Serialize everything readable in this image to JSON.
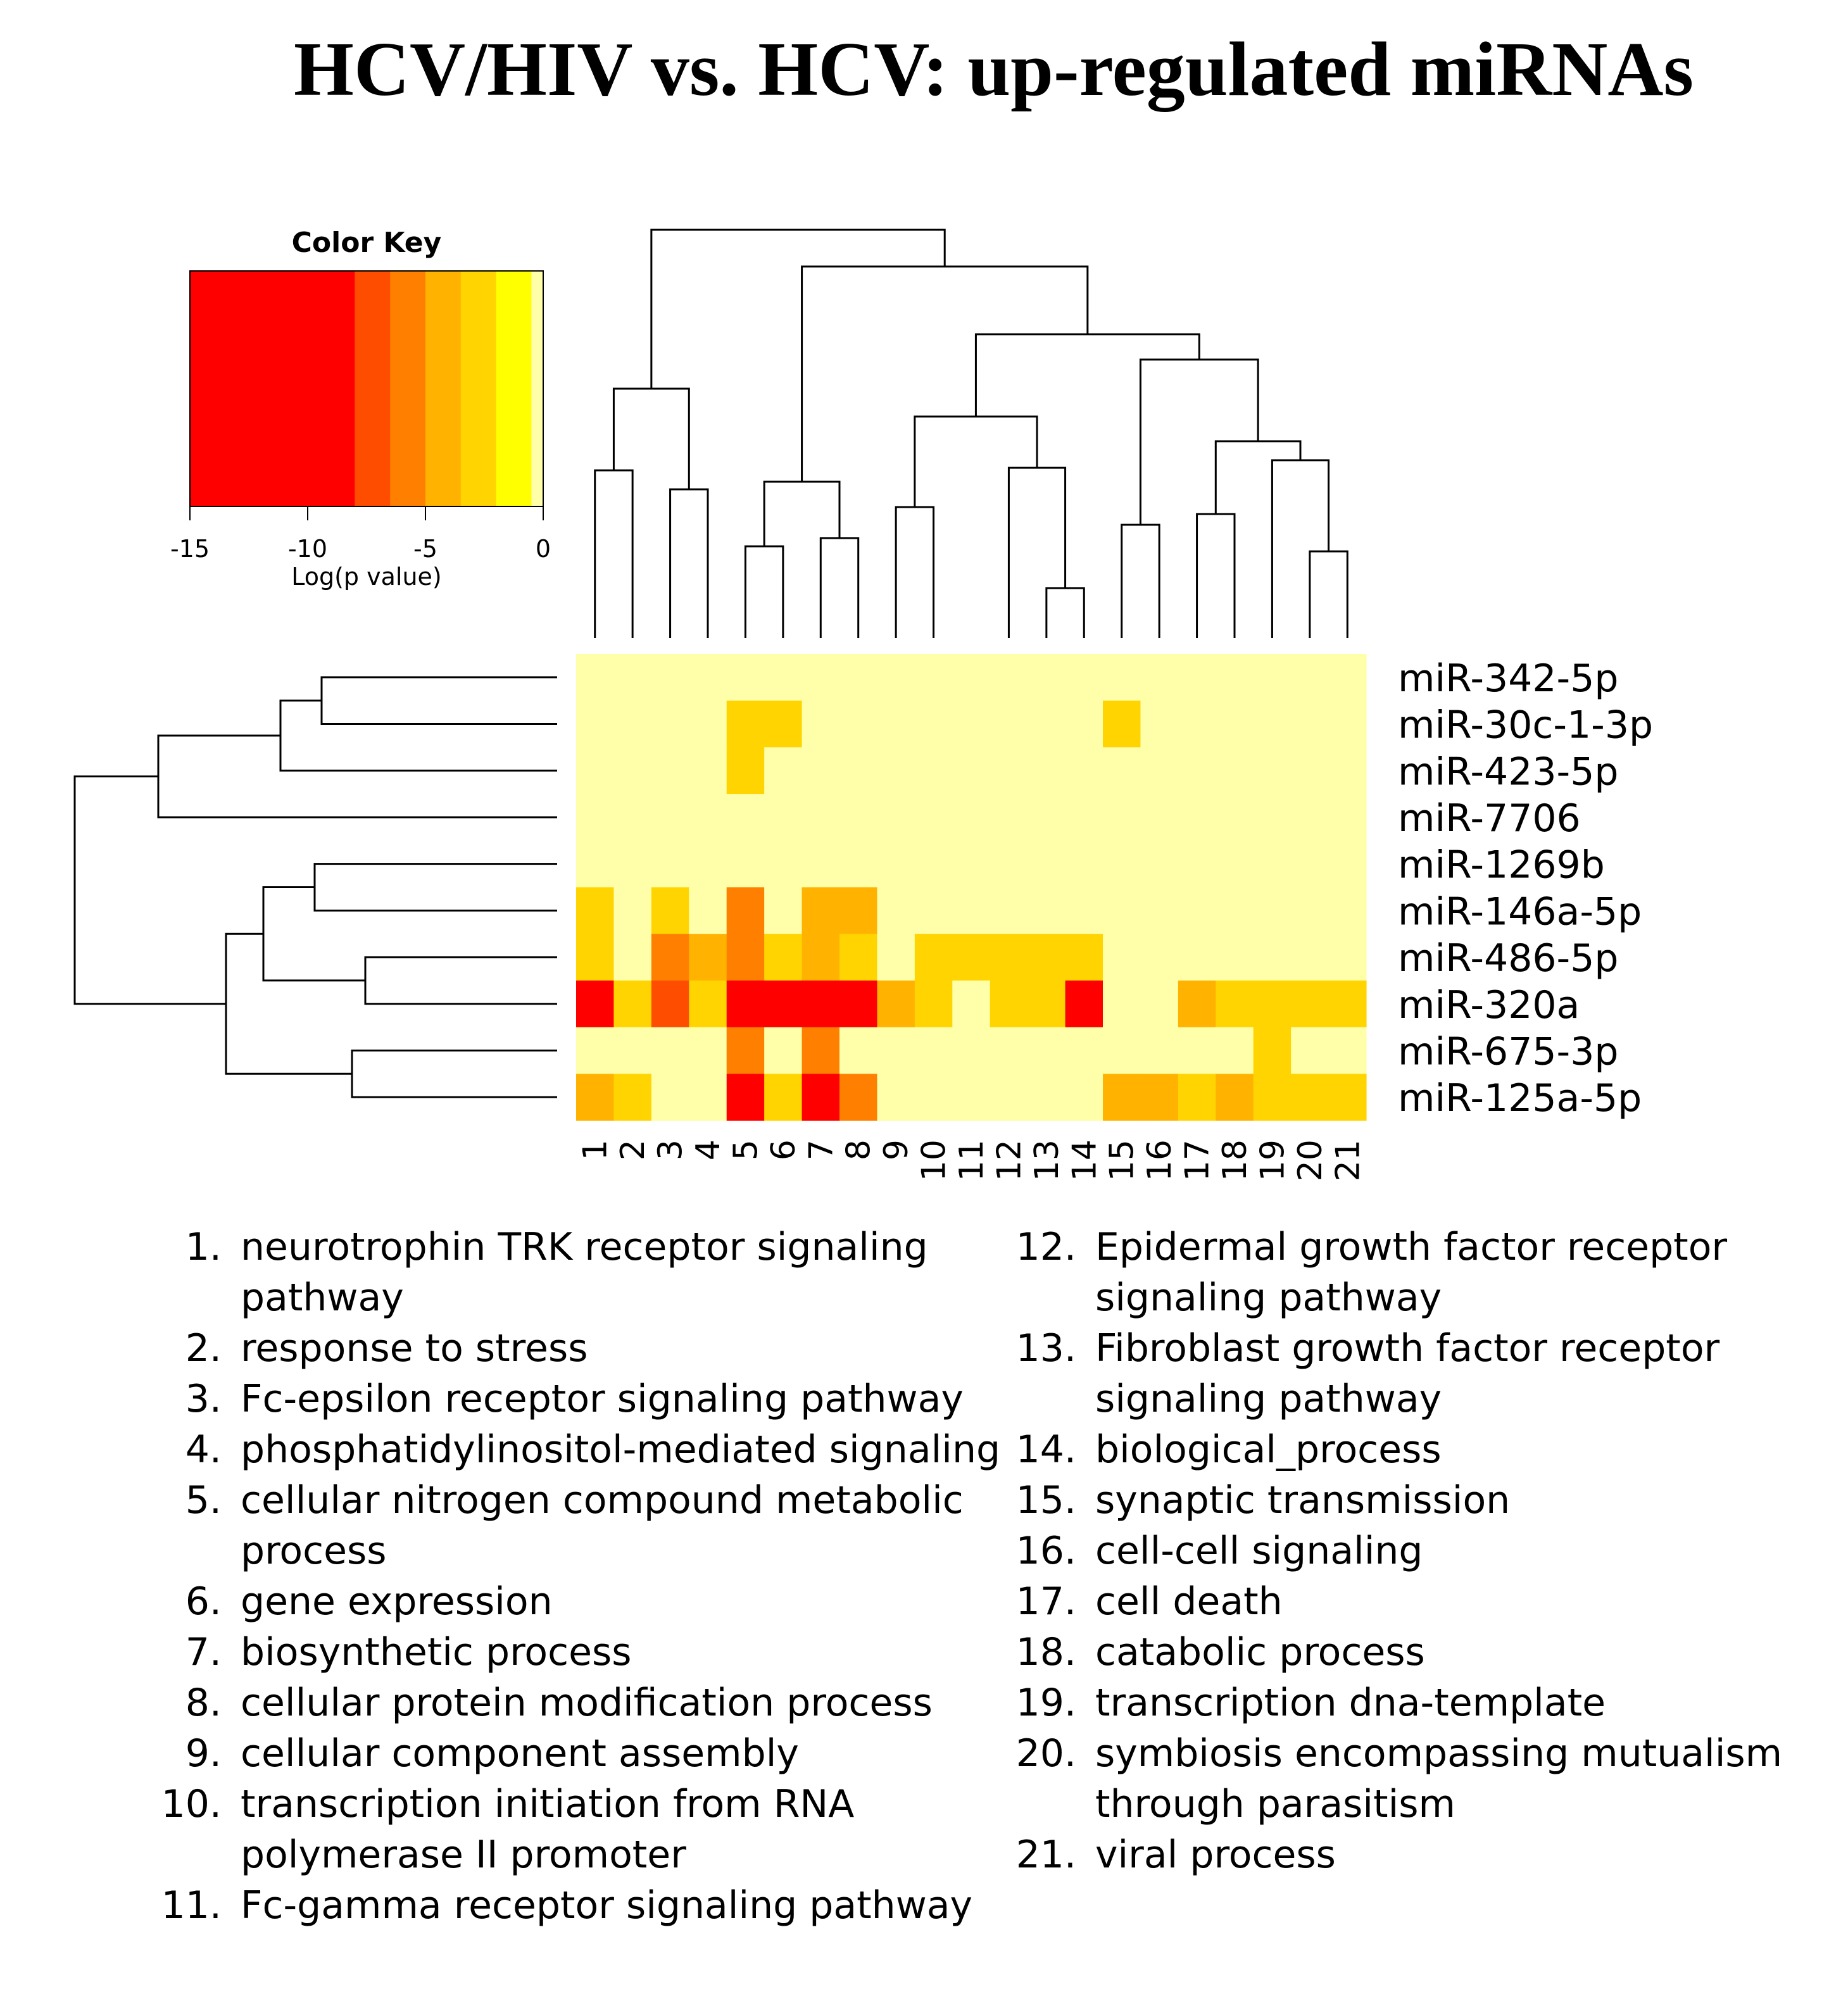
{
  "chart_data": {
    "type": "heatmap",
    "title": "HCV/HIV vs. HCV: up-regulated miRNAs",
    "color_key": {
      "title": "Color Key",
      "xlabel": "Log(p value)",
      "ticks": [
        "-15",
        "-10",
        "-5",
        "0"
      ],
      "range": [
        -15,
        0
      ],
      "palette": [
        "#ff0000",
        "#ff4d00",
        "#ff8000",
        "#ffb300",
        "#ffd400",
        "#ffff00",
        "#ffffaa"
      ]
    },
    "columns": [
      "1",
      "2",
      "3",
      "4",
      "5",
      "6",
      "7",
      "8",
      "9",
      "10",
      "11",
      "12",
      "13",
      "14",
      "15",
      "16",
      "17",
      "18",
      "19",
      "20",
      "21"
    ],
    "rows": [
      "miR-342-5p",
      "miR-30c-1-3p",
      "miR-423-5p",
      "miR-7706",
      "miR-1269b",
      "miR-146a-5p",
      "miR-486-5p",
      "miR-320a",
      "miR-675-3p",
      "miR-125a-5p"
    ],
    "values": [
      [
        0,
        0,
        0,
        0,
        0,
        0,
        0,
        0,
        0,
        0,
        0,
        0,
        0,
        0,
        0,
        0,
        0,
        0,
        0,
        0,
        0
      ],
      [
        0,
        0,
        0,
        0,
        -2.5,
        -2.5,
        0,
        0,
        0,
        0,
        0,
        0,
        0,
        0,
        -2.5,
        0,
        0,
        0,
        0,
        0,
        0
      ],
      [
        0,
        0,
        0,
        0,
        -2.5,
        0,
        0,
        0,
        0,
        0,
        0,
        0,
        0,
        0,
        0,
        0,
        0,
        0,
        0,
        0,
        0
      ],
      [
        0,
        0,
        0,
        0,
        0,
        0,
        0,
        0,
        0,
        0,
        0,
        0,
        0,
        0,
        0,
        0,
        0,
        0,
        0,
        0,
        0
      ],
      [
        0,
        0,
        0,
        0,
        0,
        0,
        0,
        0,
        0,
        0,
        0,
        0,
        0,
        0,
        0,
        0,
        0,
        0,
        0,
        0,
        0
      ],
      [
        -2.5,
        0,
        -2.5,
        0,
        -5.5,
        0,
        -4,
        -4,
        0,
        0,
        0,
        0,
        0,
        0,
        0,
        0,
        0,
        0,
        0,
        0,
        0
      ],
      [
        -2.5,
        0,
        -5.5,
        -4.5,
        -5.5,
        -2.5,
        -4,
        -2.5,
        0,
        -2.5,
        -2.5,
        -2.5,
        -2.5,
        -2.5,
        0,
        0,
        0,
        0,
        0,
        0,
        0
      ],
      [
        -12,
        -2.5,
        -7,
        -2.5,
        -12,
        -12,
        -12,
        -12,
        -4,
        -2.5,
        0,
        -2.5,
        -2.5,
        -12,
        0,
        0,
        -4.5,
        -2.5,
        -2.5,
        -2.5,
        -2.5
      ],
      [
        0,
        0,
        0,
        0,
        -5.5,
        0,
        -5.5,
        0,
        0,
        0,
        0,
        0,
        0,
        0,
        0,
        0,
        0,
        0,
        -2.5,
        0,
        0
      ],
      [
        -4.5,
        -2.5,
        0,
        0,
        -12,
        -2.5,
        -8.5,
        -5.5,
        0,
        0,
        0,
        0,
        0,
        0,
        -4,
        -4,
        -2.5,
        -4.5,
        -2.5,
        -2.5,
        -2.5
      ]
    ]
  },
  "legend_left": [
    {
      "n": "1.",
      "lines": [
        "neurotrophin TRK receptor signaling",
        "pathway"
      ]
    },
    {
      "n": "2.",
      "lines": [
        "response to stress"
      ]
    },
    {
      "n": "3.",
      "lines": [
        "Fc-epsilon receptor signaling pathway"
      ]
    },
    {
      "n": "4.",
      "lines": [
        "phosphatidylinositol-mediated signaling"
      ]
    },
    {
      "n": "5.",
      "lines": [
        "cellular nitrogen compound metabolic",
        "process"
      ]
    },
    {
      "n": "6.",
      "lines": [
        "gene expression"
      ]
    },
    {
      "n": "7.",
      "lines": [
        "biosynthetic process"
      ]
    },
    {
      "n": "8.",
      "lines": [
        "cellular protein modification process"
      ]
    },
    {
      "n": "9.",
      "lines": [
        "cellular component assembly"
      ]
    },
    {
      "n": "10.",
      "lines": [
        "transcription initiation from RNA",
        "polymerase II promoter"
      ]
    },
    {
      "n": "11.",
      "lines": [
        "Fc-gamma receptor signaling pathway"
      ]
    }
  ],
  "legend_right": [
    {
      "n": "12.",
      "lines": [
        "Epidermal growth factor receptor",
        "signaling pathway"
      ]
    },
    {
      "n": "13.",
      "lines": [
        "Fibroblast growth factor receptor",
        "signaling pathway"
      ]
    },
    {
      "n": "14.",
      "lines": [
        "biological_process"
      ]
    },
    {
      "n": "15.",
      "lines": [
        "synaptic transmission"
      ]
    },
    {
      "n": "16.",
      "lines": [
        "cell-cell signaling"
      ]
    },
    {
      "n": "17.",
      "lines": [
        "cell death"
      ]
    },
    {
      "n": "18.",
      "lines": [
        "catabolic process"
      ]
    },
    {
      "n": "19.",
      "lines": [
        "transcription dna-template"
      ]
    },
    {
      "n": "20.",
      "lines": [
        "symbiosis encompassing mutualism",
        "through parasitism"
      ]
    },
    {
      "n": "21.",
      "lines": [
        "viral process"
      ]
    }
  ]
}
